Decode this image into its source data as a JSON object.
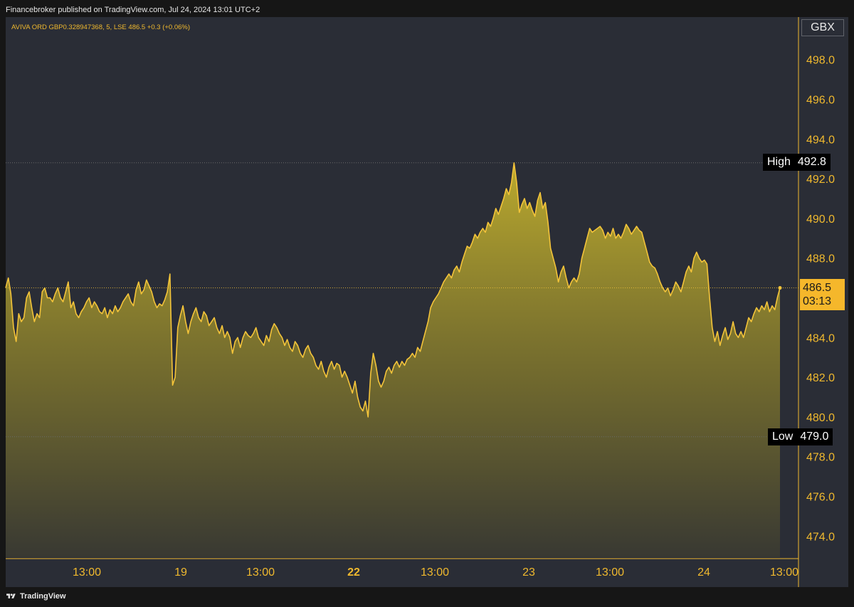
{
  "header": {
    "published_text": "Financebroker published on TradingView.com, Jul 24, 2024 13:01 UTC+2"
  },
  "legend": {
    "text": "AVIVA ORD GBP0.328947368, 5, LSE  486.5  +0.3 (+0.06%)"
  },
  "price_scale": {
    "currency": "GBX",
    "ticks": [
      "498.0",
      "496.0",
      "494.0",
      "492.0",
      "490.0",
      "488.0",
      "486.0",
      "484.0",
      "482.0",
      "480.0",
      "478.0",
      "476.0",
      "474.0"
    ]
  },
  "markers": {
    "high_label": "High",
    "high_value": "492.8",
    "low_label": "Low",
    "low_value": "479.0",
    "last_price": "486.5",
    "countdown": "03:13"
  },
  "time_axis": {
    "labels": [
      "13:00",
      "19",
      "13:00",
      "22",
      "13:00",
      "23",
      "13:00",
      "24",
      "13:00"
    ],
    "bold_labels": [
      "22"
    ]
  },
  "footer": {
    "brand": "TradingView"
  },
  "colors": {
    "line": "#f4c43a",
    "axis_text": "#f0b92e",
    "background": "#2a2d36",
    "last_price_tag": "#f5b72b"
  },
  "chart_data": {
    "type": "area",
    "title": "AVIVA ORD GBP0.328947368, 5, LSE",
    "xlabel": "",
    "ylabel": "",
    "ylim": [
      473.0,
      499.0
    ],
    "high": 492.8,
    "low": 479.0,
    "last": 486.5,
    "x_ticks": [
      "13:00",
      "19",
      "13:00",
      "22",
      "13:00",
      "23",
      "13:00",
      "24",
      "13:00"
    ],
    "series": [
      {
        "values": [
          486.5,
          487.0,
          486.2,
          484.5,
          483.8,
          485.2,
          484.8,
          485.0,
          486.0,
          486.3,
          485.5,
          484.8,
          485.2,
          485.0,
          486.3,
          486.5,
          486.0,
          486.0,
          485.8,
          486.2,
          486.5,
          486.0,
          485.8,
          486.3,
          486.8,
          485.5,
          485.8,
          485.2,
          485.0,
          485.3,
          485.5,
          485.8,
          486.0,
          485.5,
          485.8,
          485.6,
          485.3,
          485.2,
          485.5,
          485.0,
          485.4,
          485.2,
          485.6,
          485.3,
          485.5,
          485.8,
          486.0,
          486.2,
          485.8,
          485.6,
          486.4,
          486.8,
          486.2,
          486.4,
          486.9,
          486.6,
          486.3,
          485.8,
          485.5,
          485.7,
          485.6,
          485.9,
          486.3,
          487.2,
          481.6,
          482.0,
          484.5,
          485.1,
          485.6,
          484.8,
          484.2,
          484.8,
          485.2,
          485.5,
          485.0,
          484.8,
          485.3,
          485.1,
          484.6,
          484.8,
          485.0,
          484.5,
          484.2,
          484.6,
          484.0,
          484.3,
          484.0,
          483.2,
          483.8,
          484.0,
          483.5,
          484.0,
          484.3,
          484.1,
          484.0,
          484.2,
          484.5,
          484.0,
          483.8,
          483.6,
          484.1,
          483.8,
          484.4,
          484.7,
          484.5,
          484.2,
          484.0,
          483.6,
          483.9,
          483.5,
          483.3,
          483.8,
          483.6,
          483.2,
          483.0,
          483.4,
          483.6,
          483.2,
          483.0,
          482.6,
          482.4,
          482.8,
          482.3,
          482.0,
          482.5,
          482.8,
          482.4,
          482.7,
          482.6,
          482.0,
          482.3,
          482.0,
          481.6,
          481.2,
          481.8,
          481.0,
          480.5,
          480.3,
          480.8,
          480.0,
          482.2,
          483.2,
          482.6,
          481.8,
          481.5,
          481.8,
          482.3,
          482.5,
          482.2,
          482.6,
          482.8,
          482.5,
          482.8,
          482.6,
          482.9,
          483.0,
          483.2,
          483.0,
          483.5,
          483.3,
          483.8,
          484.3,
          484.8,
          485.5,
          485.8,
          486.0,
          486.2,
          486.5,
          486.8,
          487.0,
          487.2,
          487.0,
          487.4,
          487.6,
          487.3,
          487.8,
          488.2,
          488.6,
          488.5,
          488.8,
          489.2,
          489.0,
          489.3,
          489.5,
          489.3,
          489.8,
          489.6,
          490.0,
          490.5,
          490.2,
          490.6,
          491.0,
          491.5,
          491.2,
          491.8,
          492.8,
          491.8,
          490.3,
          490.7,
          491.0,
          490.5,
          490.8,
          490.4,
          490.1,
          490.9,
          491.3,
          490.5,
          490.8,
          489.8,
          488.5,
          488.0,
          487.5,
          486.8,
          487.3,
          487.6,
          487.0,
          486.5,
          486.8,
          487.0,
          486.8,
          487.2,
          488.0,
          488.5,
          489.0,
          489.5,
          489.3,
          489.4,
          489.5,
          489.6,
          489.4,
          489.0,
          489.3,
          489.1,
          489.5,
          489.0,
          489.2,
          489.0,
          489.3,
          489.7,
          489.5,
          489.2,
          489.4,
          489.6,
          489.4,
          489.3,
          488.8,
          488.3,
          487.8,
          487.6,
          487.5,
          487.2,
          486.8,
          486.5,
          486.3,
          486.5,
          486.1,
          486.4,
          486.8,
          486.6,
          486.3,
          486.8,
          487.3,
          487.6,
          487.3,
          488.0,
          488.3,
          488.0,
          487.8,
          487.9,
          487.7,
          486.0,
          484.5,
          483.8,
          484.3,
          483.6,
          484.1,
          484.5,
          483.9,
          484.2,
          484.8,
          484.2,
          484.0,
          484.3,
          484.0,
          484.5,
          485.0,
          484.8,
          485.2,
          485.5,
          485.3,
          485.6,
          485.4,
          485.8,
          485.3,
          485.6,
          485.4,
          486.0,
          486.5
        ]
      }
    ]
  }
}
